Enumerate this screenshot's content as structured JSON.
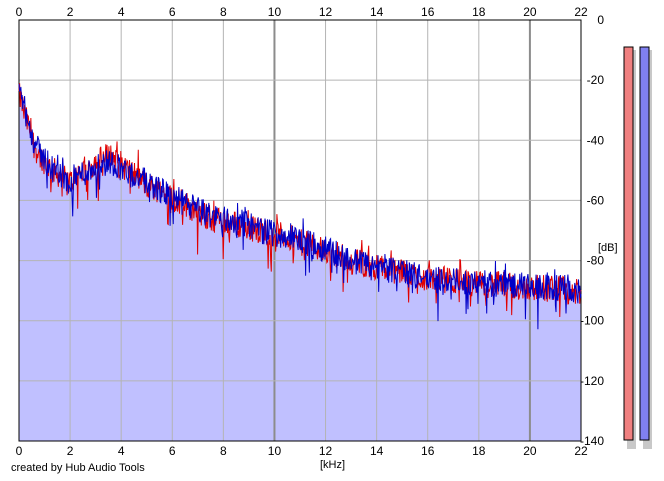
{
  "credit": "created by Hub Audio Tools",
  "colors": {
    "background": "#ffffff",
    "plot_background": "#ffffff",
    "grid": "#b4b4b4",
    "grid_major": "#8c8c8c",
    "fill": "#c0c0ff",
    "left_channel": "#e00000",
    "right_channel": "#0000c8",
    "left_meter": "#f08080",
    "right_meter": "#8080f0",
    "meter_shadow": "#c8c8c8"
  },
  "chart_data": {
    "type": "line",
    "xlabel": "[kHz]",
    "ylabel": "[dB]",
    "xlim": [
      0,
      22
    ],
    "ylim": [
      -140,
      0
    ],
    "x_ticks": [
      0,
      2,
      4,
      6,
      8,
      10,
      12,
      14,
      16,
      18,
      20,
      22
    ],
    "x_tick_labels": [
      "0",
      "2",
      "4",
      "6",
      "8",
      "10",
      "12",
      "14",
      "16",
      "18",
      "20",
      "22"
    ],
    "y_ticks": [
      0,
      -20,
      -40,
      -60,
      -80,
      -100,
      -120,
      -140
    ],
    "y_tick_labels": [
      "0",
      "-20",
      "-40",
      "-60",
      "-80",
      "-100",
      "-120",
      "-140"
    ],
    "grid": true,
    "x_major_ticks": [
      10,
      20
    ],
    "series": [
      {
        "color": "#e00000",
        "x": [
          0,
          0.1,
          0.2,
          0.4,
          0.6,
          0.8,
          1.0,
          1.2,
          1.5,
          1.8,
          2.0,
          2.2,
          2.5,
          2.8,
          3.0,
          3.3,
          3.5,
          3.8,
          4.0,
          4.3,
          4.6,
          5.0,
          5.3,
          5.6,
          6.0,
          6.5,
          7.0,
          7.5,
          8.0,
          8.5,
          9.0,
          9.5,
          10.0,
          10.5,
          11.0,
          11.5,
          12.0,
          12.5,
          13.0,
          13.5,
          14.0,
          14.5,
          15.0,
          15.5,
          16.0,
          16.5,
          17.0,
          17.5,
          18.0,
          18.5,
          19.0,
          19.5,
          20.0,
          20.5,
          21.0,
          21.5,
          22.0
        ],
        "y": [
          -25,
          -27,
          -31,
          -36,
          -42,
          -45,
          -47,
          -49,
          -51,
          -53,
          -54,
          -52,
          -50,
          -49,
          -47,
          -46,
          -45,
          -46,
          -48,
          -50,
          -52,
          -55,
          -56,
          -57,
          -59,
          -61,
          -64,
          -66,
          -67,
          -68,
          -69,
          -70,
          -71,
          -72,
          -74,
          -75,
          -77,
          -78,
          -80,
          -81,
          -82,
          -83,
          -84,
          -85,
          -86,
          -86,
          -87,
          -87,
          -88,
          -88,
          -88,
          -89,
          -89,
          -89,
          -89,
          -90,
          -91
        ]
      },
      {
        "color": "#0000c8",
        "x": [
          0,
          0.1,
          0.2,
          0.4,
          0.6,
          0.8,
          1.0,
          1.2,
          1.5,
          1.8,
          2.0,
          2.2,
          2.5,
          2.8,
          3.0,
          3.3,
          3.5,
          3.8,
          4.0,
          4.3,
          4.6,
          5.0,
          5.3,
          5.6,
          6.0,
          6.5,
          7.0,
          7.5,
          8.0,
          8.5,
          9.0,
          9.5,
          10.0,
          10.5,
          11.0,
          11.5,
          12.0,
          12.5,
          13.0,
          13.5,
          14.0,
          14.5,
          15.0,
          15.5,
          16.0,
          16.5,
          17.0,
          17.5,
          18.0,
          18.5,
          19.0,
          19.5,
          20.0,
          20.5,
          21.0,
          21.5,
          22.0
        ],
        "y": [
          -23,
          -25,
          -29,
          -35,
          -41,
          -44,
          -46,
          -48,
          -51,
          -53,
          -54,
          -52,
          -51,
          -50,
          -48,
          -48,
          -47,
          -48,
          -49,
          -51,
          -52,
          -54,
          -55,
          -57,
          -59,
          -61,
          -63,
          -65,
          -66,
          -67,
          -68,
          -70,
          -71,
          -72,
          -73,
          -75,
          -76,
          -78,
          -80,
          -81,
          -82,
          -83,
          -84,
          -85,
          -86,
          -86,
          -87,
          -87,
          -87,
          -88,
          -88,
          -88,
          -89,
          -89,
          -89,
          -89,
          -91
        ]
      }
    ],
    "level_meters": [
      {
        "color": "#f08080",
        "value": -140
      },
      {
        "color": "#8080f0",
        "value": -140
      }
    ]
  }
}
